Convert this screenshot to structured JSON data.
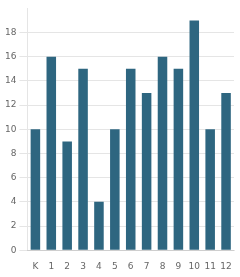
{
  "chart_data": {
    "type": "bar",
    "categories": [
      "K",
      "1",
      "2",
      "3",
      "4",
      "5",
      "6",
      "7",
      "8",
      "9",
      "10",
      "11",
      "12"
    ],
    "values": [
      10,
      16,
      9,
      15,
      4,
      10,
      15,
      13,
      16,
      15,
      19,
      10,
      13
    ],
    "color": "#2e6680",
    "ylim": [
      0,
      20
    ],
    "yticks": [
      0,
      2,
      4,
      6,
      8,
      10,
      12,
      14,
      16,
      18
    ],
    "grid": true
  }
}
